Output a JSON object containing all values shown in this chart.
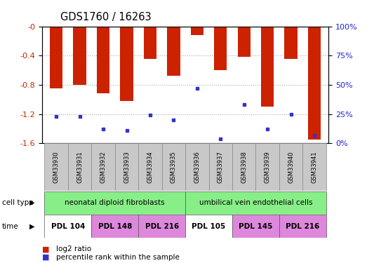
{
  "title": "GDS1760 / 16263",
  "samples": [
    "GSM33930",
    "GSM33931",
    "GSM33932",
    "GSM33933",
    "GSM33934",
    "GSM33935",
    "GSM33936",
    "GSM33937",
    "GSM33938",
    "GSM33939",
    "GSM33940",
    "GSM33941"
  ],
  "log2_ratio": [
    -0.85,
    -0.8,
    -0.92,
    -1.02,
    -0.45,
    -0.68,
    -0.12,
    -0.6,
    -0.42,
    -1.1,
    -0.45,
    -1.55
  ],
  "percentile_rank": [
    23,
    23,
    12,
    11,
    24,
    20,
    47,
    4,
    33,
    12,
    25,
    7
  ],
  "bar_color": "#cc2200",
  "marker_color": "#3333cc",
  "ylim_left": [
    -1.6,
    0.0
  ],
  "ylim_right": [
    0,
    100
  ],
  "yticks_left": [
    0.0,
    -0.4,
    -0.8,
    -1.2,
    -1.6
  ],
  "yticks_right": [
    0,
    25,
    50,
    75,
    100
  ],
  "cell_type_groups": [
    {
      "label": "neonatal diploid fibroblasts",
      "start": 0,
      "end": 6,
      "color": "#88ee88"
    },
    {
      "label": "umbilical vein endothelial cells",
      "start": 6,
      "end": 12,
      "color": "#88ee88"
    }
  ],
  "time_groups": [
    {
      "label": "PDL 104",
      "start": 0,
      "end": 2,
      "color": "#ffffff"
    },
    {
      "label": "PDL 148",
      "start": 2,
      "end": 4,
      "color": "#dd88dd"
    },
    {
      "label": "PDL 216",
      "start": 4,
      "end": 6,
      "color": "#dd88dd"
    },
    {
      "label": "PDL 105",
      "start": 6,
      "end": 8,
      "color": "#ffffff"
    },
    {
      "label": "PDL 145",
      "start": 8,
      "end": 10,
      "color": "#dd88dd"
    },
    {
      "label": "PDL 216 ",
      "start": 10,
      "end": 12,
      "color": "#dd88dd"
    }
  ],
  "legend_items": [
    {
      "label": "log2 ratio",
      "color": "#cc2200"
    },
    {
      "label": "percentile rank within the sample",
      "color": "#3333cc"
    }
  ],
  "cell_type_label": "cell type",
  "time_label": "time",
  "bar_width": 0.55,
  "grid_color": "#aaaaaa",
  "bg_color": "#ffffff",
  "left_axis_color": "#cc2200",
  "right_axis_color": "#2222cc",
  "label_row_color": "#c8c8c8",
  "label_row_edge": "#888888"
}
